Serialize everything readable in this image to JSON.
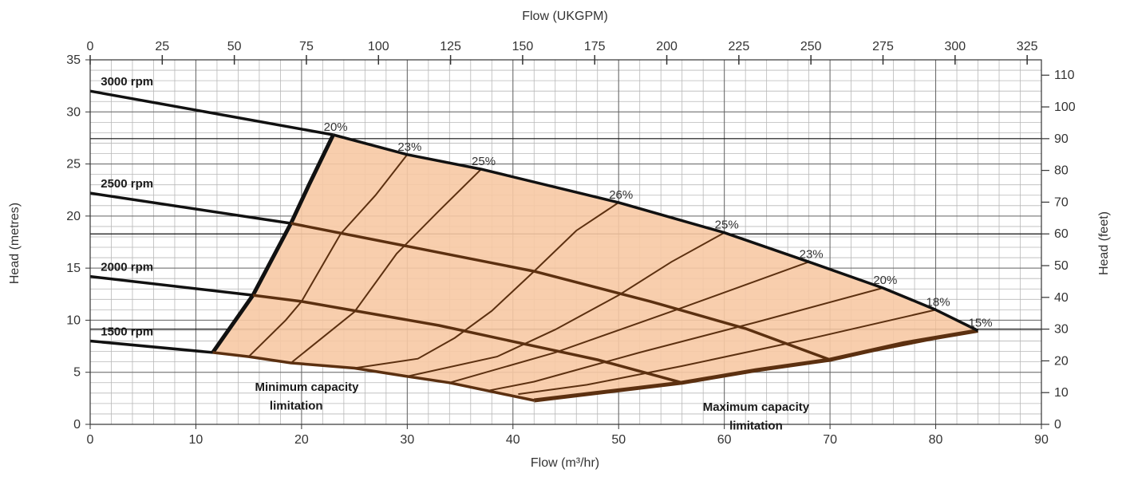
{
  "chart_data": {
    "type": "line",
    "title": "",
    "xlabel": "Flow (m³/hr)",
    "ylabel": "Head (metres)",
    "xlim": [
      0,
      90
    ],
    "ylim": [
      0,
      35
    ],
    "x_ticks": [
      0,
      10,
      20,
      30,
      40,
      50,
      60,
      70,
      80,
      90
    ],
    "y_ticks": [
      0,
      5,
      10,
      15,
      20,
      25,
      30,
      35
    ],
    "grid": true,
    "secondary_x": {
      "label": "Flow (UKGPM)",
      "ticks": [
        0,
        25,
        50,
        75,
        100,
        125,
        150,
        175,
        200,
        225,
        250,
        275,
        300,
        325
      ],
      "per_primary_unit": 3.666
    },
    "secondary_y": {
      "label": "Head (feet)",
      "ticks": [
        0,
        10,
        20,
        30,
        40,
        50,
        60,
        70,
        80,
        90,
        100,
        110
      ],
      "per_primary_unit": 3.281
    },
    "operating_region_color": "#f7c9a4",
    "curve_color": "#5c3010",
    "speed_curves": [
      {
        "name": "3000 rpm",
        "x": [
          0,
          23,
          30,
          37,
          50,
          60,
          68,
          75,
          80,
          84
        ],
        "y": [
          32,
          27.8,
          25.9,
          24.5,
          21.3,
          18.4,
          15.6,
          13.1,
          11,
          9
        ]
      },
      {
        "name": "2500 rpm",
        "x": [
          0,
          19,
          30,
          42,
          53,
          62,
          70
        ],
        "y": [
          22.2,
          19.3,
          17.1,
          14.7,
          11.8,
          9.2,
          6.2
        ]
      },
      {
        "name": "2000 rpm",
        "x": [
          0,
          15.4,
          20,
          33,
          43,
          48,
          56
        ],
        "y": [
          14.2,
          12.4,
          11.8,
          9.5,
          7.3,
          6.2,
          4
        ]
      },
      {
        "name": "1500 rpm",
        "x": [
          0,
          11.6,
          15,
          19,
          25,
          30,
          34,
          42
        ],
        "y": [
          8,
          6.9,
          6.5,
          5.9,
          5.4,
          4.6,
          4,
          2.3
        ]
      }
    ],
    "min_capacity_limit": {
      "x": [
        11.6,
        15.4,
        19,
        20.7,
        23
      ],
      "y": [
        6.9,
        12.4,
        19.3,
        23,
        27.8
      ]
    },
    "max_capacity_limit": {
      "x": [
        42,
        56,
        63,
        70,
        77,
        84
      ],
      "y": [
        2.3,
        4,
        5.2,
        6.2,
        7.8,
        9
      ]
    },
    "efficiency_contours": [
      {
        "label": "20%",
        "x": [
          23,
          20.7,
          19,
          15.4,
          11.6
        ],
        "y": [
          27.8,
          23,
          19.3,
          12.4,
          6.9
        ]
      },
      {
        "label": "23%",
        "x": [
          30,
          27,
          23.7,
          20,
          18.5,
          15
        ],
        "y": [
          25.9,
          22,
          18.3,
          11.8,
          10,
          6.5
        ]
      },
      {
        "label": "25%",
        "x": [
          37,
          33,
          29,
          25,
          19
        ],
        "y": [
          24.5,
          20.5,
          16.4,
          10.8,
          5.9
        ]
      },
      {
        "label": "26%",
        "x": [
          50,
          46,
          42,
          38,
          34.5,
          31,
          25
        ],
        "y": [
          21.3,
          18.6,
          14.7,
          10.9,
          8.3,
          6.3,
          5.4
        ]
      },
      {
        "label": "25%",
        "x": [
          60,
          55,
          50,
          44,
          38.5,
          30
        ],
        "y": [
          18.4,
          15.6,
          12.4,
          9.1,
          6.5,
          4.6
        ]
      },
      {
        "label": "23%",
        "x": [
          68,
          56,
          44,
          34
        ],
        "y": [
          15.6,
          11.2,
          6.9,
          4
        ]
      },
      {
        "label": "20%",
        "x": [
          75,
          63,
          52,
          42,
          37.5
        ],
        "y": [
          13.1,
          9.8,
          6.9,
          4.1,
          3.2
        ]
      },
      {
        "label": "18%",
        "x": [
          80,
          68,
          56,
          47,
          40.5
        ],
        "y": [
          11,
          8.2,
          5.6,
          3.8,
          2.9
        ]
      },
      {
        "label": "15%",
        "x": [
          84,
          70,
          56,
          42
        ],
        "y": [
          9,
          6.2,
          4,
          2.3
        ]
      }
    ],
    "annotations": [
      {
        "text": "Minimum capacity",
        "x": 20.5,
        "y": 3.6
      },
      {
        "text": "limitation",
        "x": 19.5,
        "y": 1.8
      },
      {
        "text": "Maximum capacity",
        "x": 63,
        "y": 1.7
      },
      {
        "text": "limitation",
        "x": 63,
        "y": -0.1
      }
    ]
  }
}
